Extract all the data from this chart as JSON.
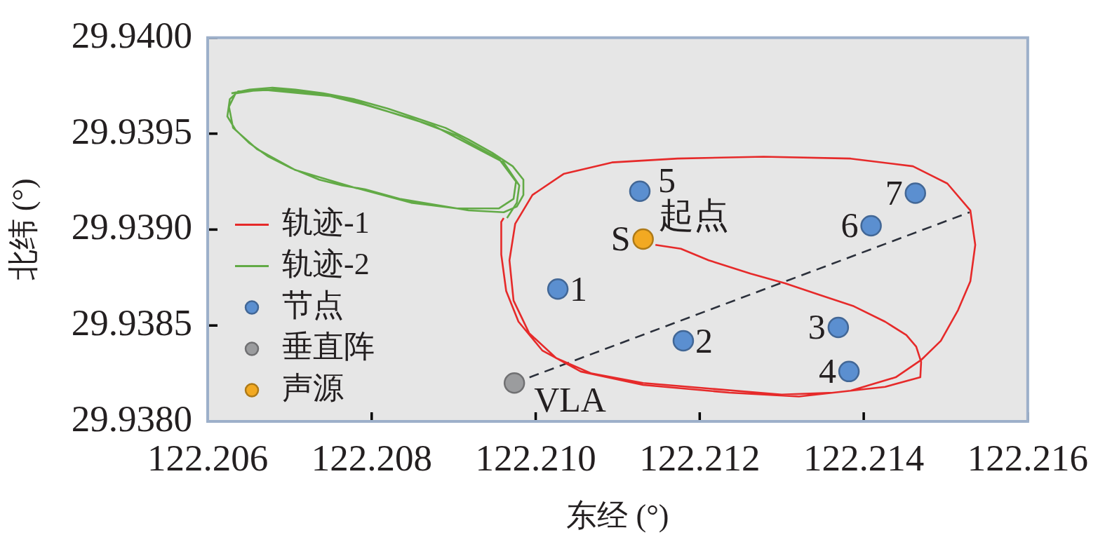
{
  "chart_data": {
    "type": "scatter",
    "xlabel": "东经 (°)",
    "ylabel": "北纬 (°)",
    "xlim": [
      122.206,
      122.216
    ],
    "xticks": [
      122.206,
      122.208,
      {
        "value": 122.21,
        "label": "122.210"
      },
      122.212,
      122.214,
      122.216
    ],
    "ylim": [
      29.938,
      29.94
    ],
    "yticks": [
      {
        "value": 29.938,
        "label": "29.9380"
      },
      29.9385,
      {
        "value": 29.939,
        "label": "29.9390"
      },
      29.9395,
      {
        "value": 29.94,
        "label": "29.9400"
      }
    ],
    "grid": false,
    "legend": "bottom left",
    "series": [
      {
        "type": "line",
        "name": "轨迹-1",
        "color": "#e62a2a",
        "x": [
          122.21146,
          122.21177,
          122.21211,
          122.21262,
          122.21304,
          122.21346,
          122.21388,
          122.21426,
          122.21452,
          122.21464,
          122.2147,
          122.21469,
          122.21426,
          122.21363,
          122.213,
          122.21215,
          122.21131,
          122.21068,
          122.21025,
          122.20992,
          122.20973,
          122.20968,
          122.20975,
          122.20996,
          122.21034,
          122.21093,
          122.21173,
          122.21278,
          122.21384,
          122.2146,
          122.21502,
          122.2153,
          122.21536,
          122.2153,
          122.21515,
          122.21494,
          122.2147,
          122.21439,
          122.21384,
          122.21321,
          122.21236,
          122.21131,
          122.21055,
          122.21008,
          122.20979,
          122.20964,
          122.20958,
          122.20958,
          122.20961
        ],
        "values": [
          29.93892,
          29.9389,
          29.93884,
          29.93877,
          29.93872,
          29.93866,
          29.9386,
          29.93852,
          29.93845,
          29.93839,
          29.93831,
          29.93823,
          29.93818,
          29.93815,
          29.93814,
          29.93817,
          29.9382,
          29.93825,
          29.93833,
          29.93846,
          29.93863,
          29.93884,
          29.93903,
          29.93918,
          29.93929,
          29.93935,
          29.93937,
          29.93938,
          29.93937,
          29.93933,
          29.93924,
          29.9391,
          29.93892,
          29.93873,
          29.93858,
          29.93842,
          29.93832,
          29.93823,
          29.93816,
          29.93813,
          29.93815,
          29.93819,
          29.93826,
          29.93837,
          29.93852,
          29.93868,
          29.93887,
          29.93904,
          29.93906
        ]
      },
      {
        "type": "line",
        "name": "轨迹-2",
        "color": "#62aa46",
        "x": [
          122.20629,
          122.20651,
          122.20679,
          122.20707,
          122.20741,
          122.20778,
          122.2082,
          122.20862,
          122.2089,
          122.20918,
          122.20947,
          122.20972,
          122.20985,
          122.20985,
          122.20977,
          122.20961,
          122.20918,
          122.20876,
          122.20834,
          122.20792,
          122.20764,
          122.20736,
          122.20702,
          122.20674,
          122.20651,
          122.20634,
          122.20624,
          122.20627,
          122.20637,
          122.20685,
          122.20736,
          122.20792,
          122.20848,
          122.20904,
          122.20955,
          122.20976,
          122.20973,
          122.20955,
          122.20904,
          122.20848,
          122.20778,
          122.20707,
          122.2066,
          122.20631,
          122.20626,
          122.20634,
          122.20665,
          122.20764,
          122.20876,
          122.20961,
          122.2098,
          122.20977,
          122.20965
        ],
        "values": [
          29.93971,
          29.93973,
          29.93974,
          29.93973,
          29.93971,
          29.93968,
          29.93963,
          29.93957,
          29.93953,
          29.93947,
          29.9394,
          29.93933,
          29.93926,
          29.93918,
          29.93912,
          29.93909,
          29.9391,
          29.93913,
          29.93916,
          29.93921,
          29.93923,
          29.93926,
          29.93932,
          29.93938,
          29.93945,
          29.93952,
          29.93959,
          29.93968,
          29.93972,
          29.93973,
          29.93971,
          29.93965,
          29.93958,
          29.93949,
          29.93937,
          29.93925,
          29.93916,
          29.93911,
          29.93911,
          29.93914,
          29.93922,
          29.93931,
          29.93942,
          29.93953,
          29.93964,
          29.93971,
          29.93973,
          29.93969,
          29.93954,
          29.93935,
          29.93923,
          29.93914,
          29.93906
        ]
      },
      {
        "type": "line",
        "color": "#2b303b",
        "line_style": "dashed",
        "x": [
          122.20974,
          122.21529
        ],
        "values": [
          29.9382,
          29.93909
        ]
      },
      {
        "name": "节点",
        "color": "#5b8fd0",
        "marker": "circle",
        "x": [
          122.21027,
          122.2118,
          122.21369,
          122.21382,
          122.21127,
          122.21409,
          122.21463
        ],
        "values": [
          29.93869,
          29.93842,
          29.93849,
          29.93826,
          29.9392,
          29.93902,
          29.93919
        ]
      },
      {
        "name": "垂直阵",
        "color": "#9b9c9e",
        "marker": "circle",
        "x": [
          122.20974
        ],
        "values": [
          29.9382
        ]
      },
      {
        "name": "声源",
        "color": "#f2a922",
        "marker": "circle",
        "x": [
          122.21131
        ],
        "values": [
          29.93895
        ]
      }
    ],
    "annotations": [
      {
        "text": "1",
        "x": 122.21027,
        "y": 29.93869
      },
      {
        "text": "2",
        "x": 122.2118,
        "y": 29.93842
      },
      {
        "text": "3",
        "x": 122.21369,
        "y": 29.93849
      },
      {
        "text": "4",
        "x": 122.21382,
        "y": 29.93826
      },
      {
        "text": "5",
        "x": 122.21127,
        "y": 29.9392
      },
      {
        "text": "6",
        "x": 122.21409,
        "y": 29.93902
      },
      {
        "text": "7",
        "x": 122.21463,
        "y": 29.93919
      },
      {
        "text": "S",
        "x": 122.21131,
        "y": 29.93895
      },
      {
        "text": "起点",
        "x": 122.21131,
        "y": 29.93895
      },
      {
        "text": "VLA",
        "x": 122.20974,
        "y": 29.9382
      }
    ]
  }
}
